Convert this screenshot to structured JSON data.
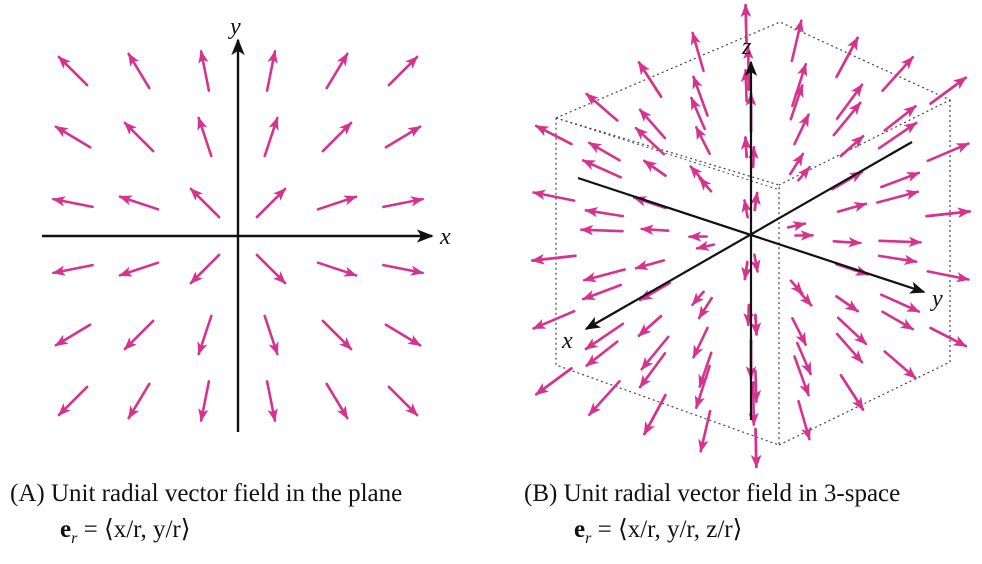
{
  "panel_a": {
    "axis_x": "x",
    "axis_y": "y",
    "caption_label": "(A)",
    "caption_text": "Unit radial vector field in the plane",
    "equation": {
      "lhs_symbol": "e",
      "lhs_subscript": "r",
      "rhs": "= ⟨x/r, y/r⟩"
    }
  },
  "panel_b": {
    "axis_x": "x",
    "axis_y": "y",
    "axis_z": "z",
    "caption_label": "(B)",
    "caption_text": "Unit radial vector field in 3-space",
    "equation": {
      "lhs_symbol": "e",
      "lhs_subscript": "r",
      "rhs": "= ⟨x/r, y/r, z/r⟩"
    }
  },
  "colors": {
    "arrow": "#d6338f",
    "axis": "#111111",
    "box": "#444444"
  }
}
